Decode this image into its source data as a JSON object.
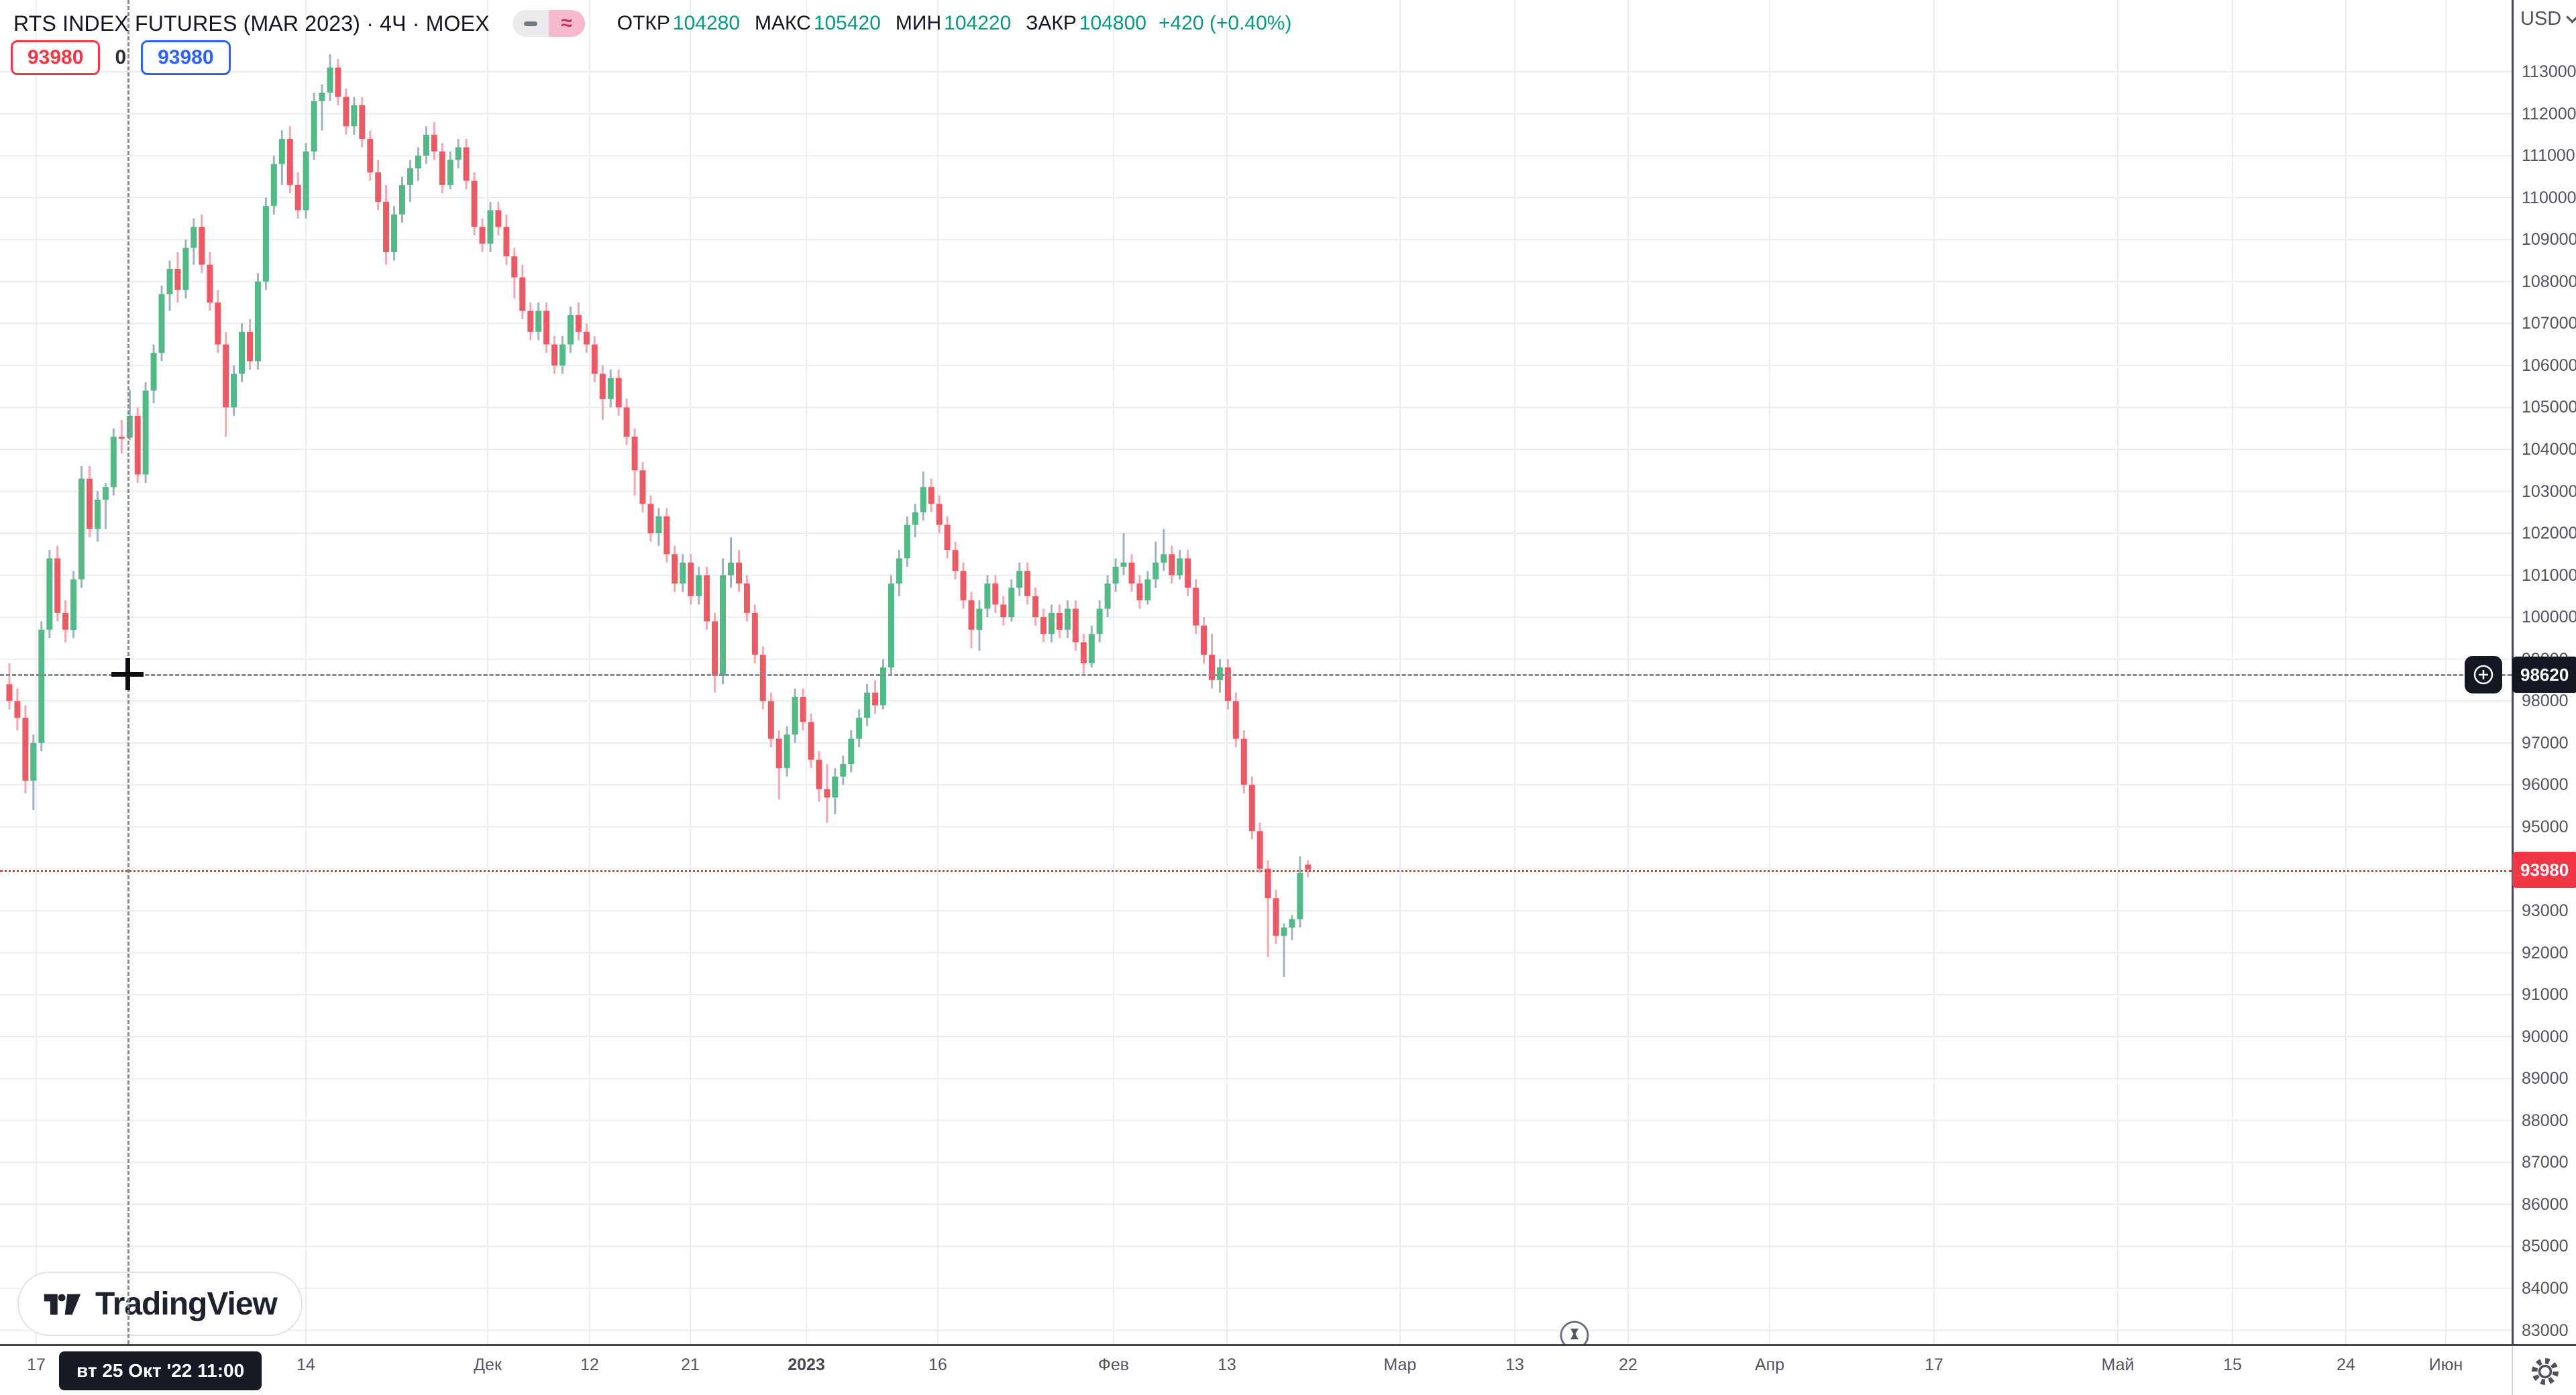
{
  "header": {
    "symbol_title": "RTS INDEX FUTURES (MAR 2023) · 4Ч · MOEX",
    "ohlc": {
      "open_label": "ОТКР",
      "open": "104280",
      "high_label": "МАКС",
      "high": "105420",
      "low_label": "МИН",
      "low": "104220",
      "close_label": "ЗАКР",
      "close": "104800",
      "change": "+420 (+0.40%)"
    },
    "approx_symbol": "≈"
  },
  "alert_widgets": {
    "red_price": "93980",
    "counter": "0",
    "blue_price": "93980"
  },
  "watermark": "TradingView",
  "price_axis": {
    "currency": "USD",
    "crosshair_price": "98620",
    "last_price": "93980",
    "ticks": [
      113000,
      112000,
      111000,
      110000,
      109000,
      108000,
      107000,
      106000,
      105000,
      104000,
      103000,
      102000,
      101000,
      100000,
      99000,
      98000,
      97000,
      96000,
      95000,
      94000,
      93000,
      92000,
      91000,
      90000,
      89000,
      88000,
      87000,
      86000,
      85000,
      84000,
      83000
    ]
  },
  "time_axis": {
    "crosshair_time": "вт 25 Окт '22  11:00",
    "ticks": [
      {
        "label": "17",
        "x": 54
      },
      {
        "label": "14",
        "x": 456
      },
      {
        "label": "Дек",
        "x": 727
      },
      {
        "label": "12",
        "x": 879
      },
      {
        "label": "21",
        "x": 1029
      },
      {
        "label": "2023",
        "x": 1202,
        "bold": true
      },
      {
        "label": "16",
        "x": 1398
      },
      {
        "label": "Фев",
        "x": 1660
      },
      {
        "label": "13",
        "x": 1829
      },
      {
        "label": "Мар",
        "x": 2087
      },
      {
        "label": "13",
        "x": 2258
      },
      {
        "label": "22",
        "x": 2427
      },
      {
        "label": "Апр",
        "x": 2638
      },
      {
        "label": "17",
        "x": 2883
      },
      {
        "label": "Май",
        "x": 3157
      },
      {
        "label": "15",
        "x": 3328
      },
      {
        "label": "24",
        "x": 3497
      },
      {
        "label": "Июн",
        "x": 3646
      }
    ]
  },
  "colors": {
    "up": "#53b987",
    "down": "#eb5b65",
    "up_wick": "#9fb3bf",
    "down_wick": "#f2a7b1",
    "grid": "#e8eef4",
    "axis_border": "#434651",
    "axis_text": "#50535e",
    "accent_green": "#089981",
    "accent_red": "#f23645",
    "accent_blue": "#2962ff",
    "badge_bg": "#131722"
  },
  "chart_data": {
    "type": "candlestick",
    "symbol": "RTS INDEX FUTURES (MAR 2023)",
    "interval": "4Ч",
    "exchange": "MOEX",
    "currency": "USD",
    "ylim": [
      83000,
      113000
    ],
    "crosshair": {
      "price": 98620,
      "time": "вт 25 Окт '22 11:00"
    },
    "hovered_candle": {
      "open": 104280,
      "high": 105420,
      "low": 104220,
      "close": 104800
    },
    "last_close": 93980,
    "candles": [
      [
        98400,
        98900,
        97800,
        98000
      ],
      [
        98000,
        98300,
        97300,
        97600
      ],
      [
        97600,
        97900,
        95800,
        96100
      ],
      [
        96100,
        97200,
        95400,
        97000
      ],
      [
        97000,
        99900,
        96800,
        99700
      ],
      [
        99700,
        101600,
        99500,
        101400
      ],
      [
        101400,
        101700,
        99900,
        100100
      ],
      [
        100100,
        100400,
        99400,
        99700
      ],
      [
        99700,
        101100,
        99500,
        100900
      ],
      [
        100900,
        103600,
        100700,
        103300
      ],
      [
        103300,
        103600,
        101900,
        102100
      ],
      [
        102100,
        103000,
        101800,
        102800
      ],
      [
        102800,
        103200,
        102100,
        103100
      ],
      [
        103100,
        104500,
        102900,
        104300
      ],
      [
        104300,
        104700,
        103900,
        104280
      ],
      [
        104280,
        105420,
        104220,
        104800
      ],
      [
        104800,
        105000,
        103200,
        103400
      ],
      [
        103400,
        105600,
        103200,
        105400
      ],
      [
        105400,
        106500,
        105100,
        106300
      ],
      [
        106300,
        107900,
        106100,
        107700
      ],
      [
        107700,
        108500,
        107300,
        108300
      ],
      [
        108300,
        108700,
        107500,
        107800
      ],
      [
        107800,
        109000,
        107600,
        108800
      ],
      [
        108800,
        109500,
        108400,
        109300
      ],
      [
        109300,
        109600,
        108200,
        108400
      ],
      [
        108400,
        108700,
        107300,
        107500
      ],
      [
        107500,
        107800,
        106300,
        106500
      ],
      [
        106500,
        106800,
        104300,
        105000
      ],
      [
        105000,
        106000,
        104800,
        105800
      ],
      [
        105800,
        107000,
        105600,
        106800
      ],
      [
        106800,
        107100,
        105900,
        106100
      ],
      [
        106100,
        108200,
        105900,
        108000
      ],
      [
        108000,
        110000,
        107800,
        109800
      ],
      [
        109800,
        111000,
        109600,
        110800
      ],
      [
        110800,
        111600,
        110300,
        111400
      ],
      [
        111400,
        111700,
        110100,
        110300
      ],
      [
        110300,
        110600,
        109500,
        109700
      ],
      [
        109700,
        111300,
        109500,
        111100
      ],
      [
        111100,
        112500,
        110900,
        112300
      ],
      [
        112300,
        112700,
        111600,
        112500
      ],
      [
        112500,
        113420,
        112300,
        113100
      ],
      [
        113100,
        113300,
        112200,
        112400
      ],
      [
        112400,
        112600,
        111500,
        111700
      ],
      [
        111700,
        112400,
        111500,
        112200
      ],
      [
        112200,
        112400,
        111200,
        111400
      ],
      [
        111400,
        111600,
        110400,
        110600
      ],
      [
        110600,
        110900,
        109700,
        109900
      ],
      [
        109900,
        110300,
        108400,
        108700
      ],
      [
        108700,
        109800,
        108500,
        109600
      ],
      [
        109600,
        110500,
        109400,
        110300
      ],
      [
        110300,
        110900,
        109900,
        110700
      ],
      [
        110700,
        111200,
        110400,
        111000
      ],
      [
        111000,
        111700,
        110800,
        111500
      ],
      [
        111500,
        111800,
        110900,
        111100
      ],
      [
        111100,
        111300,
        110100,
        110300
      ],
      [
        110300,
        111100,
        110200,
        110900
      ],
      [
        110900,
        111400,
        110700,
        111200
      ],
      [
        111200,
        111400,
        110200,
        110400
      ],
      [
        110400,
        110600,
        109100,
        109300
      ],
      [
        109300,
        109500,
        108700,
        108900
      ],
      [
        108900,
        109900,
        108700,
        109700
      ],
      [
        109700,
        109900,
        109100,
        109300
      ],
      [
        109300,
        109600,
        108400,
        108600
      ],
      [
        108600,
        108800,
        107600,
        108100
      ],
      [
        108100,
        108400,
        107100,
        107300
      ],
      [
        107300,
        107500,
        106600,
        106800
      ],
      [
        106800,
        107500,
        106600,
        107300
      ],
      [
        107300,
        107500,
        106300,
        106500
      ],
      [
        106500,
        106700,
        105800,
        106000
      ],
      [
        106000,
        106700,
        105800,
        106500
      ],
      [
        106500,
        107400,
        106300,
        107200
      ],
      [
        107200,
        107500,
        106600,
        106800
      ],
      [
        106800,
        107000,
        106300,
        106500
      ],
      [
        106500,
        106700,
        105600,
        105800
      ],
      [
        105800,
        106000,
        104700,
        105200
      ],
      [
        105200,
        105900,
        105000,
        105700
      ],
      [
        105700,
        105900,
        104800,
        105000
      ],
      [
        105000,
        105200,
        104100,
        104300
      ],
      [
        104300,
        104500,
        102900,
        103500
      ],
      [
        103500,
        103700,
        102500,
        102700
      ],
      [
        102700,
        102900,
        101800,
        102000
      ],
      [
        102000,
        102600,
        101700,
        102400
      ],
      [
        102400,
        102600,
        101300,
        101500
      ],
      [
        101500,
        101700,
        100600,
        100800
      ],
      [
        100800,
        101500,
        100600,
        101300
      ],
      [
        101300,
        101500,
        100300,
        100500
      ],
      [
        100500,
        101200,
        100300,
        101000
      ],
      [
        101000,
        101200,
        99700,
        99900
      ],
      [
        99900,
        100100,
        98200,
        98600
      ],
      [
        98600,
        101400,
        98400,
        101000
      ],
      [
        101000,
        101900,
        100700,
        101300
      ],
      [
        101300,
        101600,
        100600,
        100800
      ],
      [
        100800,
        101000,
        99900,
        100100
      ],
      [
        100100,
        100300,
        98900,
        99100
      ],
      [
        99100,
        99300,
        97800,
        98000
      ],
      [
        98000,
        98200,
        96900,
        97100
      ],
      [
        97100,
        97300,
        95650,
        96400
      ],
      [
        96400,
        97400,
        96200,
        97200
      ],
      [
        97200,
        98300,
        97000,
        98100
      ],
      [
        98100,
        98300,
        97300,
        97500
      ],
      [
        97500,
        97700,
        96400,
        96600
      ],
      [
        96600,
        96800,
        95600,
        95900
      ],
      [
        95900,
        96500,
        95100,
        95700
      ],
      [
        95700,
        96400,
        95300,
        96200
      ],
      [
        96200,
        96700,
        96000,
        96500
      ],
      [
        96500,
        97300,
        96300,
        97100
      ],
      [
        97100,
        97800,
        96900,
        97600
      ],
      [
        97600,
        98400,
        97400,
        98200
      ],
      [
        98200,
        98500,
        97700,
        97900
      ],
      [
        97900,
        99000,
        97800,
        98800
      ],
      [
        98800,
        101000,
        98600,
        100800
      ],
      [
        100800,
        101600,
        100500,
        101400
      ],
      [
        101400,
        102400,
        101200,
        102200
      ],
      [
        102200,
        102700,
        101900,
        102500
      ],
      [
        102500,
        103470,
        102300,
        103100
      ],
      [
        103100,
        103300,
        102500,
        102700
      ],
      [
        102700,
        102900,
        102000,
        102200
      ],
      [
        102200,
        102400,
        101400,
        101600
      ],
      [
        101600,
        101800,
        100900,
        101100
      ],
      [
        101100,
        101300,
        100200,
        100400
      ],
      [
        100400,
        100600,
        99260,
        99700
      ],
      [
        99700,
        100400,
        99200,
        100200
      ],
      [
        100200,
        101000,
        100000,
        100800
      ],
      [
        100800,
        101000,
        100100,
        100300
      ],
      [
        100300,
        100500,
        99800,
        100000
      ],
      [
        100000,
        100900,
        99900,
        100700
      ],
      [
        100700,
        101300,
        100500,
        101100
      ],
      [
        101100,
        101300,
        100300,
        100500
      ],
      [
        100500,
        100700,
        99800,
        100000
      ],
      [
        100000,
        100200,
        99400,
        99600
      ],
      [
        99600,
        100300,
        99400,
        100100
      ],
      [
        100100,
        100300,
        99500,
        99700
      ],
      [
        99700,
        100400,
        99500,
        100200
      ],
      [
        100200,
        100400,
        99200,
        99400
      ],
      [
        99400,
        99600,
        98600,
        98900
      ],
      [
        98900,
        99800,
        98800,
        99600
      ],
      [
        99600,
        100400,
        99400,
        100200
      ],
      [
        100200,
        101000,
        100000,
        100800
      ],
      [
        100800,
        101400,
        100600,
        101200
      ],
      [
        101200,
        102000,
        101000,
        101300
      ],
      [
        101300,
        101500,
        100600,
        100800
      ],
      [
        100800,
        101000,
        100200,
        100400
      ],
      [
        100400,
        101100,
        100300,
        100900
      ],
      [
        100900,
        101800,
        100700,
        101300
      ],
      [
        101300,
        102100,
        101100,
        101500
      ],
      [
        101500,
        101700,
        100800,
        101000
      ],
      [
        101000,
        101600,
        100900,
        101400
      ],
      [
        101400,
        101600,
        100500,
        100700
      ],
      [
        100700,
        100900,
        99600,
        99800
      ],
      [
        99800,
        100000,
        98900,
        99100
      ],
      [
        99100,
        99600,
        98300,
        98500
      ],
      [
        98500,
        99000,
        98200,
        98800
      ],
      [
        98800,
        99000,
        97800,
        98000
      ],
      [
        98000,
        98200,
        96900,
        97100
      ],
      [
        97100,
        97300,
        95800,
        96000
      ],
      [
        96000,
        96200,
        94700,
        94900
      ],
      [
        94900,
        95100,
        93900,
        94000
      ],
      [
        94000,
        94200,
        91900,
        93300
      ],
      [
        93300,
        93500,
        92200,
        92400
      ],
      [
        92400,
        92700,
        91420,
        92600
      ],
      [
        92600,
        92900,
        92300,
        92800
      ],
      [
        92800,
        94300,
        92600,
        93900
      ],
      [
        94100,
        94200,
        93800,
        93980
      ]
    ]
  }
}
